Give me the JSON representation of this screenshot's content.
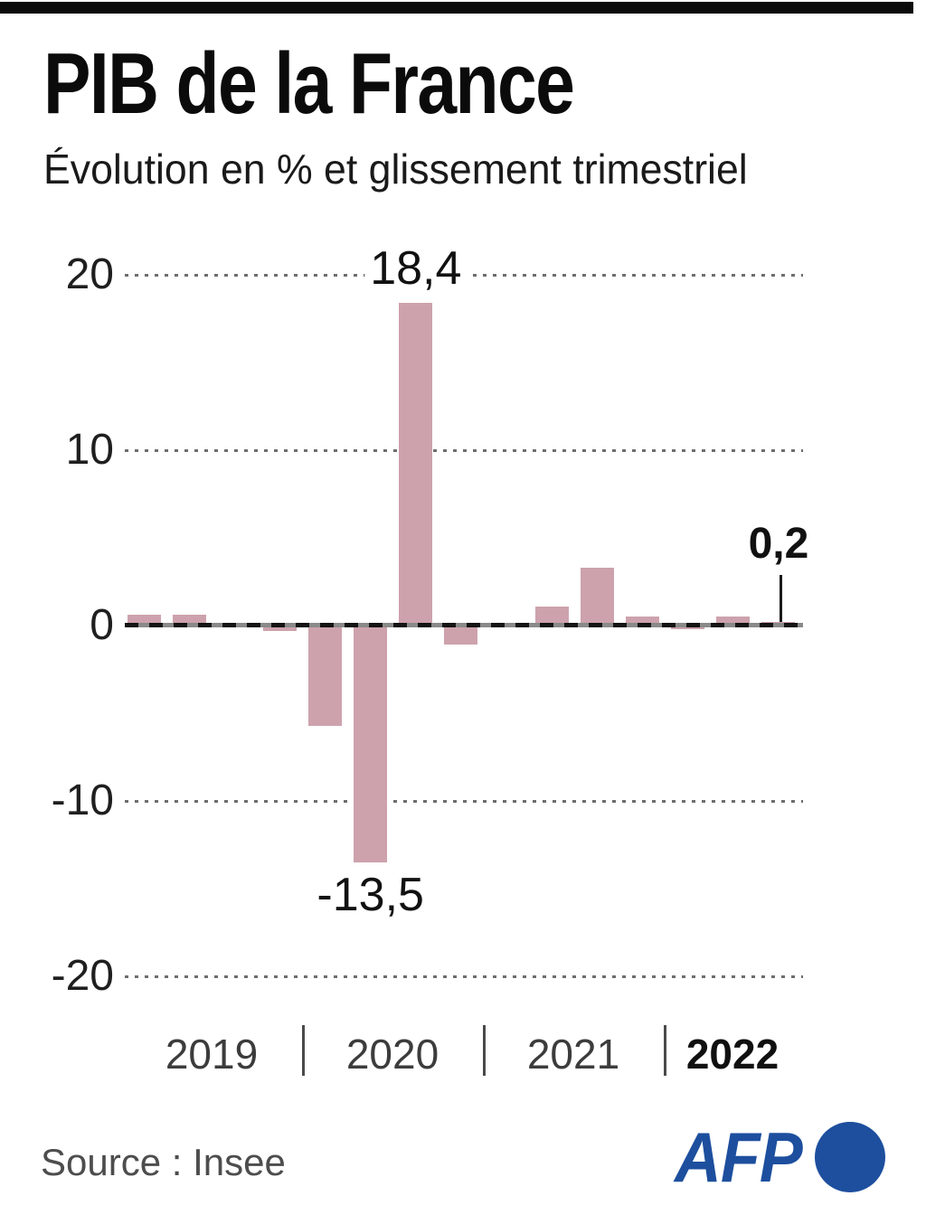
{
  "header": {
    "title": "PIB de la France",
    "subtitle": "Évolution en % et glissement trimestriel"
  },
  "chart_data": {
    "type": "bar",
    "title": "PIB de la France",
    "subtitle": "Évolution en % et glissement trimestriel",
    "unit": "%",
    "categories": [
      "T1 2019",
      "T2 2019",
      "T3 2019",
      "T4 2019",
      "T1 2020",
      "T2 2020",
      "T3 2020",
      "T4 2020",
      "T1 2021",
      "T2 2021",
      "T3 2021",
      "T4 2021",
      "T1 2022",
      "T2 2022",
      "T3 2022"
    ],
    "values": [
      0.6,
      0.6,
      0.1,
      -0.3,
      -5.7,
      -13.5,
      18.4,
      -1.1,
      0.0,
      1.1,
      3.3,
      0.5,
      -0.2,
      0.5,
      0.2
    ],
    "ylim": [
      -20,
      20
    ],
    "yticks": [
      {
        "value": 20,
        "label": "20"
      },
      {
        "value": 10,
        "label": "10"
      },
      {
        "value": 0,
        "label": "0"
      },
      {
        "value": -10,
        "label": "-10"
      },
      {
        "value": -20,
        "label": "-20"
      }
    ],
    "gridline_style": "dotted",
    "bar_color": "#cda2ad",
    "annotations": [
      {
        "text": "18,4",
        "bar_index": 6,
        "position": "above",
        "bold": false,
        "pointer": false
      },
      {
        "text": "-13,5",
        "bar_index": 5,
        "position": "below",
        "bold": false,
        "pointer": false
      },
      {
        "text": "0,2",
        "bar_index": 14,
        "position": "above",
        "bold": true,
        "pointer": true
      }
    ],
    "x_year_groups": [
      {
        "label": "2019",
        "bold": false
      },
      {
        "label": "2020",
        "bold": false
      },
      {
        "label": "2021",
        "bold": false
      },
      {
        "label": "2022",
        "bold": true
      }
    ],
    "legend": "none"
  },
  "footer": {
    "source": "Source : Insee",
    "afp_logo_text": "AFP"
  },
  "colors": {
    "bar": "#cda2ad",
    "afp_blue": "#1d4f9e",
    "title_text": "#0b0b0b",
    "muted_text": "#4d4d4d"
  }
}
